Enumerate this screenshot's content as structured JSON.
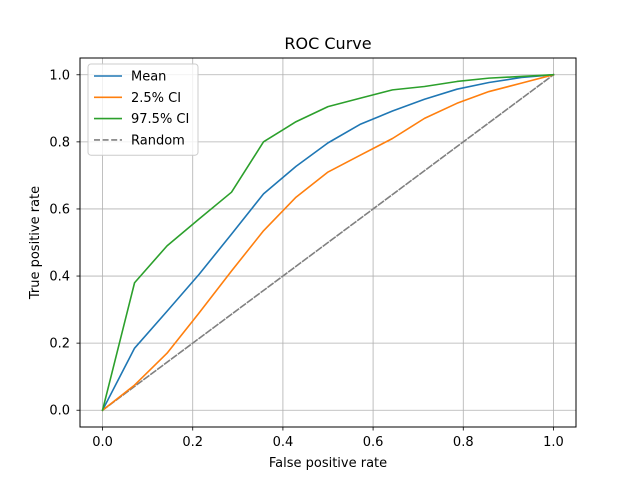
{
  "chart_data": {
    "type": "line",
    "title": "ROC Curve",
    "xlabel": "False positive rate",
    "ylabel": "True positive rate",
    "xlim": [
      -0.05,
      1.05
    ],
    "ylim": [
      -0.05,
      1.05
    ],
    "grid": true,
    "legend_position": "top-left",
    "xticks": [
      0.0,
      0.2,
      0.4,
      0.6,
      0.8,
      1.0
    ],
    "xtick_labels": [
      "0.0",
      "0.2",
      "0.4",
      "0.6",
      "0.8",
      "1.0"
    ],
    "yticks": [
      0.0,
      0.2,
      0.4,
      0.6,
      0.8,
      1.0
    ],
    "ytick_labels": [
      "0.0",
      "0.2",
      "0.4",
      "0.6",
      "0.8",
      "1.0"
    ],
    "series": [
      {
        "name": "Mean",
        "color": "#1f77b4",
        "dashed": false,
        "x": [
          0.0,
          0.071,
          0.143,
          0.214,
          0.286,
          0.357,
          0.429,
          0.5,
          0.571,
          0.643,
          0.714,
          0.786,
          0.857,
          0.929,
          1.0
        ],
        "y": [
          0.0,
          0.185,
          0.295,
          0.405,
          0.525,
          0.645,
          0.727,
          0.797,
          0.852,
          0.892,
          0.927,
          0.957,
          0.977,
          0.992,
          1.0
        ]
      },
      {
        "name": "2.5% CI",
        "color": "#ff7f0e",
        "dashed": false,
        "x": [
          0.0,
          0.071,
          0.143,
          0.214,
          0.286,
          0.357,
          0.429,
          0.5,
          0.571,
          0.643,
          0.714,
          0.786,
          0.857,
          0.929,
          1.0
        ],
        "y": [
          0.0,
          0.075,
          0.17,
          0.29,
          0.415,
          0.535,
          0.635,
          0.71,
          0.76,
          0.81,
          0.87,
          0.915,
          0.95,
          0.975,
          1.0
        ]
      },
      {
        "name": "97.5% CI",
        "color": "#2ca02c",
        "dashed": false,
        "x": [
          0.0,
          0.071,
          0.143,
          0.214,
          0.286,
          0.357,
          0.429,
          0.5,
          0.571,
          0.643,
          0.714,
          0.786,
          0.857,
          0.929,
          1.0
        ],
        "y": [
          0.0,
          0.38,
          0.49,
          0.57,
          0.65,
          0.8,
          0.86,
          0.905,
          0.93,
          0.955,
          0.965,
          0.98,
          0.99,
          0.995,
          1.0
        ]
      },
      {
        "name": "Random",
        "color": "#808080",
        "dashed": true,
        "x": [
          0.0,
          1.0
        ],
        "y": [
          0.0,
          1.0
        ]
      }
    ]
  }
}
